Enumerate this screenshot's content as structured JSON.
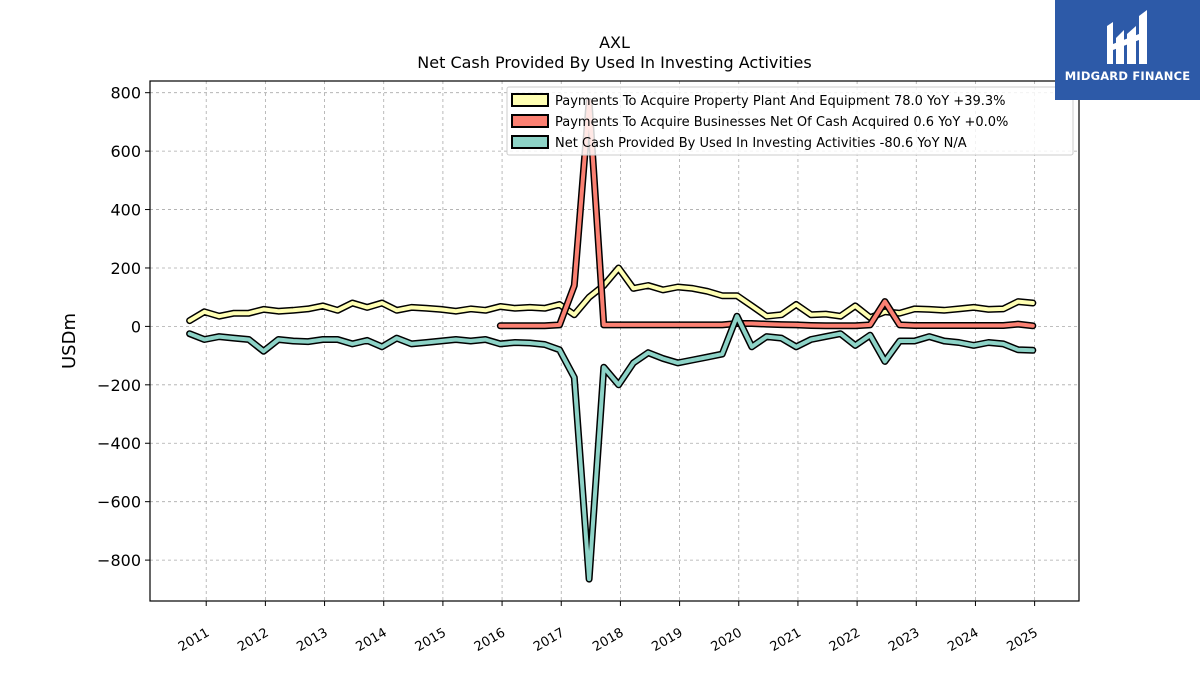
{
  "chart_data": {
    "type": "line",
    "title": "AXL",
    "subtitle": "Net Cash Provided By Used In Investing Activities",
    "ylabel": "USDm",
    "xlabel": "",
    "ylim": [
      -940,
      840
    ],
    "xlim": [
      2010.05,
      2025.75
    ],
    "yticks": [
      -800,
      -600,
      -400,
      -200,
      0,
      200,
      400,
      600,
      800
    ],
    "xticks": [
      "2011",
      "2012",
      "2013",
      "2014",
      "2015",
      "2016",
      "2017",
      "2018",
      "2019",
      "2020",
      "2021",
      "2022",
      "2023",
      "2024",
      "2025"
    ],
    "grid": true,
    "legend_position": "top-right",
    "series": [
      {
        "name": "Payments To Acquire Property Plant And Equipment",
        "legend_label": "Payments To Acquire Property Plant And Equipment  78.0 YoY +39.3%",
        "color": "#ffffb3",
        "x": [
          2010.72,
          2010.97,
          2011.22,
          2011.47,
          2011.72,
          2011.97,
          2012.22,
          2012.47,
          2012.72,
          2012.97,
          2013.22,
          2013.47,
          2013.72,
          2013.97,
          2014.22,
          2014.47,
          2014.72,
          2014.97,
          2015.22,
          2015.47,
          2015.72,
          2015.97,
          2016.22,
          2016.47,
          2016.72,
          2016.97,
          2017.22,
          2017.47,
          2017.72,
          2017.97,
          2018.22,
          2018.47,
          2018.72,
          2018.97,
          2019.22,
          2019.47,
          2019.72,
          2019.97,
          2020.22,
          2020.47,
          2020.72,
          2020.97,
          2021.22,
          2021.47,
          2021.72,
          2021.97,
          2022.22,
          2022.47,
          2022.72,
          2022.97,
          2023.22,
          2023.47,
          2023.72,
          2023.97,
          2024.22,
          2024.47,
          2024.72,
          2024.97
        ],
        "values": [
          20,
          50,
          35,
          45,
          45,
          58,
          52,
          55,
          60,
          70,
          55,
          80,
          65,
          80,
          55,
          65,
          62,
          58,
          52,
          60,
          55,
          68,
          62,
          65,
          62,
          75,
          40,
          100,
          140,
          200,
          130,
          140,
          125,
          135,
          130,
          120,
          105,
          105,
          70,
          35,
          40,
          75,
          40,
          42,
          35,
          70,
          30,
          50,
          45,
          60,
          58,
          55,
          60,
          65,
          58,
          60,
          85,
          80
        ]
      },
      {
        "name": "Payments To Acquire Businesses Net Of Cash Acquired",
        "legend_label": "Payments To Acquire Businesses Net Of Cash Acquired  0.6 YoY +0.0%",
        "color": "#fb8072",
        "x": [
          2015.97,
          2016.22,
          2016.47,
          2016.72,
          2016.97,
          2017.22,
          2017.47,
          2017.72,
          2017.97,
          2018.22,
          2018.47,
          2018.72,
          2018.97,
          2019.22,
          2019.47,
          2019.72,
          2019.97,
          2020.22,
          2020.47,
          2020.72,
          2020.97,
          2021.22,
          2021.47,
          2021.72,
          2021.97,
          2022.22,
          2022.47,
          2022.72,
          2022.97,
          2023.22,
          2023.47,
          2023.72,
          2023.97,
          2024.22,
          2024.47,
          2024.72,
          2024.97
        ],
        "values": [
          2,
          2,
          2,
          2,
          5,
          140,
          770,
          5,
          5,
          5,
          5,
          5,
          5,
          5,
          5,
          5,
          10,
          10,
          8,
          6,
          5,
          3,
          2,
          2,
          2,
          5,
          85,
          5,
          3,
          3,
          3,
          3,
          3,
          3,
          3,
          8,
          2
        ]
      },
      {
        "name": "Net Cash Provided By Used In Investing Activities",
        "legend_label": "Net Cash Provided By Used In Investing Activities  -80.6 YoY N/A",
        "color": "#8dd3c7",
        "x": [
          2010.72,
          2010.97,
          2011.22,
          2011.47,
          2011.72,
          2011.97,
          2012.22,
          2012.47,
          2012.72,
          2012.97,
          2013.22,
          2013.47,
          2013.72,
          2013.97,
          2014.22,
          2014.47,
          2014.72,
          2014.97,
          2015.22,
          2015.47,
          2015.72,
          2015.97,
          2016.22,
          2016.47,
          2016.72,
          2016.97,
          2017.22,
          2017.47,
          2017.72,
          2017.97,
          2018.22,
          2018.47,
          2018.72,
          2018.97,
          2019.22,
          2019.47,
          2019.72,
          2019.97,
          2020.22,
          2020.47,
          2020.72,
          2020.97,
          2021.22,
          2021.47,
          2021.72,
          2021.97,
          2022.22,
          2022.47,
          2022.72,
          2022.97,
          2023.22,
          2023.47,
          2023.72,
          2023.97,
          2024.22,
          2024.47,
          2024.72,
          2024.97
        ],
        "values": [
          -25,
          -45,
          -35,
          -40,
          -45,
          -85,
          -45,
          -50,
          -52,
          -45,
          -45,
          -60,
          -48,
          -70,
          -40,
          -60,
          -55,
          -50,
          -45,
          -50,
          -45,
          -60,
          -55,
          -57,
          -62,
          -80,
          -175,
          -865,
          -140,
          -200,
          -125,
          -90,
          -110,
          -125,
          -115,
          -105,
          -95,
          35,
          -70,
          -35,
          -40,
          -70,
          -45,
          -35,
          -25,
          -65,
          -30,
          -120,
          -50,
          -50,
          -35,
          -50,
          -55,
          -65,
          -55,
          -60,
          -80,
          -82
        ]
      }
    ]
  },
  "logo": {
    "text": "MIDGARD FINANCE",
    "bg_color": "#2d5aa8"
  }
}
